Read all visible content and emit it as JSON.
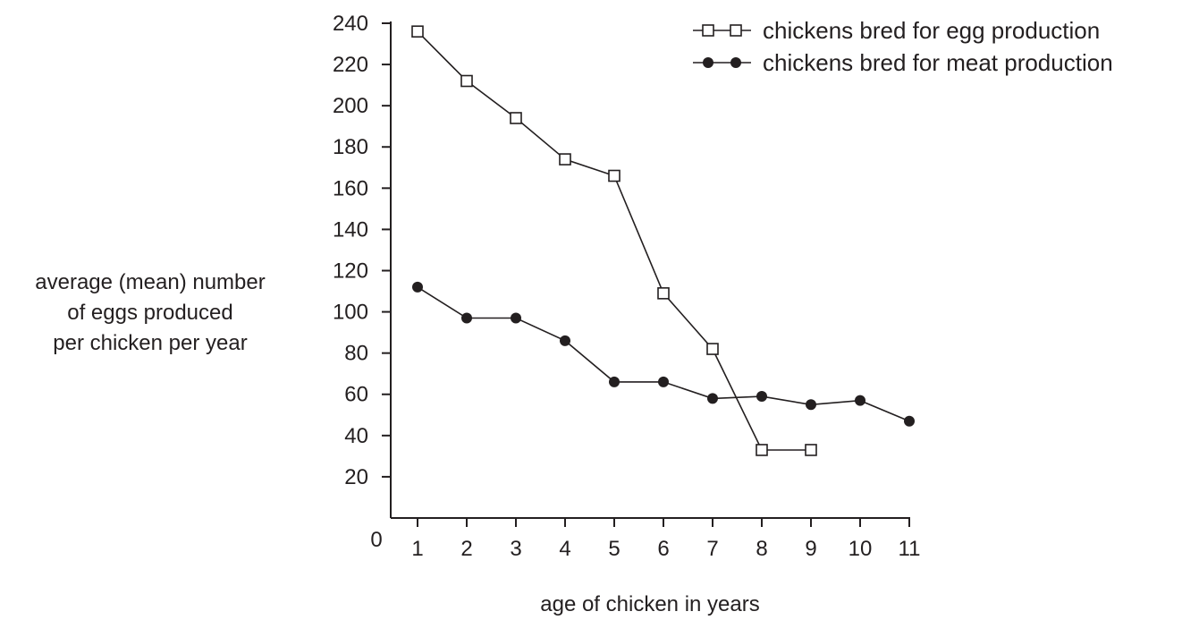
{
  "chart_data": {
    "type": "line",
    "title": "",
    "xlabel": "age of chicken in years",
    "ylabel_lines": [
      "average (mean) number",
      "of eggs produced",
      "per chicken per year"
    ],
    "origin_label": "0",
    "xlim": [
      1,
      11
    ],
    "ylim": [
      0,
      240
    ],
    "x_ticks": [
      "1",
      "2",
      "3",
      "4",
      "5",
      "6",
      "7",
      "8",
      "9",
      "10",
      "11"
    ],
    "y_ticks": [
      "20",
      "40",
      "60",
      "80",
      "100",
      "120",
      "140",
      "160",
      "180",
      "200",
      "220",
      "240"
    ],
    "grid": false,
    "legend_position": "top-right",
    "series": [
      {
        "name": "chickens bred for egg production",
        "marker": "open-square",
        "x": [
          1,
          2,
          3,
          4,
          5,
          6,
          7,
          8,
          9
        ],
        "y": [
          236,
          212,
          194,
          174,
          166,
          109,
          82,
          33,
          33
        ]
      },
      {
        "name": "chickens bred for meat production",
        "marker": "filled-circle",
        "x": [
          1,
          2,
          3,
          4,
          5,
          6,
          7,
          8,
          9,
          10,
          11
        ],
        "y": [
          112,
          97,
          97,
          86,
          66,
          66,
          58,
          59,
          55,
          57,
          47
        ]
      }
    ],
    "colors": {
      "ink": "#231f20",
      "background": "#ffffff"
    }
  }
}
